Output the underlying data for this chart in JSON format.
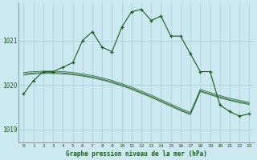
{
  "title": "Graphe pression niveau de la mer (hPa)",
  "background_color": "#cce8f0",
  "grid_color": "#a8ccd8",
  "line_color": "#1a5c1a",
  "x_labels": [
    "0",
    "1",
    "2",
    "3",
    "4",
    "5",
    "6",
    "7",
    "8",
    "9",
    "10",
    "11",
    "12",
    "13",
    "14",
    "15",
    "16",
    "17",
    "18",
    "19",
    "20",
    "21",
    "22",
    "23"
  ],
  "ylim": [
    1018.7,
    1021.85
  ],
  "yticks": [
    1019,
    1020,
    1021
  ],
  "series": {
    "main": [
      1019.8,
      1020.1,
      1020.3,
      1020.3,
      1020.4,
      1020.5,
      1021.0,
      1021.2,
      1020.85,
      1020.75,
      1021.3,
      1021.65,
      1021.7,
      1021.45,
      1021.55,
      1021.1,
      1021.1,
      1020.7,
      1020.3,
      1020.3,
      1019.55,
      1019.4,
      1019.3,
      1019.35
    ],
    "smooth1": [
      1020.22,
      1020.25,
      1020.26,
      1020.26,
      1020.25,
      1020.23,
      1020.2,
      1020.16,
      1020.11,
      1020.05,
      1019.98,
      1019.9,
      1019.81,
      1019.72,
      1019.62,
      1019.52,
      1019.42,
      1019.33,
      1019.85,
      1019.78,
      1019.71,
      1019.65,
      1019.6,
      1019.56
    ],
    "smooth2": [
      1020.25,
      1020.27,
      1020.28,
      1020.28,
      1020.27,
      1020.25,
      1020.22,
      1020.18,
      1020.13,
      1020.07,
      1020.0,
      1019.92,
      1019.83,
      1019.74,
      1019.64,
      1019.54,
      1019.44,
      1019.35,
      1019.87,
      1019.8,
      1019.73,
      1019.67,
      1019.62,
      1019.58
    ],
    "smooth3": [
      1020.28,
      1020.3,
      1020.31,
      1020.31,
      1020.3,
      1020.28,
      1020.25,
      1020.21,
      1020.16,
      1020.1,
      1020.03,
      1019.95,
      1019.86,
      1019.77,
      1019.67,
      1019.57,
      1019.47,
      1019.38,
      1019.9,
      1019.83,
      1019.76,
      1019.7,
      1019.65,
      1019.61
    ]
  }
}
